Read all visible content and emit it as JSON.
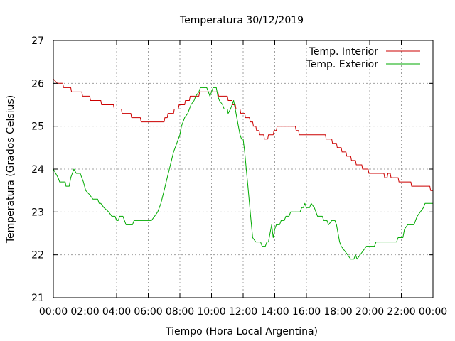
{
  "chart_data": {
    "type": "line",
    "title": "Temperatura 30/12/2019",
    "xlabel": "Tiempo (Hora Local Argentina)",
    "ylabel": "Temperatura (Grados Celsius)",
    "x_unit": "hours",
    "xlim": [
      0,
      24
    ],
    "ylim": [
      21,
      27
    ],
    "x_ticks": [
      0,
      2,
      4,
      6,
      8,
      10,
      12,
      14,
      16,
      18,
      20,
      22,
      24
    ],
    "x_tick_labels": [
      "00:00",
      "02:00",
      "04:00",
      "06:00",
      "08:00",
      "10:00",
      "12:00",
      "14:00",
      "16:00",
      "18:00",
      "20:00",
      "22:00",
      "00:00"
    ],
    "y_ticks": [
      21,
      22,
      23,
      24,
      25,
      26,
      27
    ],
    "y_tick_labels": [
      "21",
      "22",
      "23",
      "24",
      "25",
      "26",
      "27"
    ],
    "grid": true,
    "legend_position": "top-right",
    "series": [
      {
        "name": "Temp. Interior",
        "color": "#cc0000",
        "points": [
          [
            0,
            26.1
          ],
          [
            0.25,
            26.0
          ],
          [
            0.6,
            26.0
          ],
          [
            0.65,
            25.9
          ],
          [
            1.1,
            25.9
          ],
          [
            1.15,
            25.8
          ],
          [
            1.8,
            25.8
          ],
          [
            1.85,
            25.7
          ],
          [
            2.3,
            25.7
          ],
          [
            2.35,
            25.6
          ],
          [
            3.0,
            25.6
          ],
          [
            3.05,
            25.5
          ],
          [
            3.8,
            25.5
          ],
          [
            3.85,
            25.4
          ],
          [
            4.3,
            25.4
          ],
          [
            4.35,
            25.3
          ],
          [
            4.9,
            25.3
          ],
          [
            4.95,
            25.2
          ],
          [
            5.5,
            25.2
          ],
          [
            5.55,
            25.1
          ],
          [
            7.0,
            25.1
          ],
          [
            7.05,
            25.2
          ],
          [
            7.2,
            25.2
          ],
          [
            7.25,
            25.3
          ],
          [
            7.6,
            25.3
          ],
          [
            7.65,
            25.4
          ],
          [
            7.9,
            25.4
          ],
          [
            7.95,
            25.5
          ],
          [
            8.3,
            25.5
          ],
          [
            8.35,
            25.6
          ],
          [
            8.6,
            25.6
          ],
          [
            8.65,
            25.7
          ],
          [
            9.2,
            25.7
          ],
          [
            9.25,
            25.8
          ],
          [
            10.4,
            25.8
          ],
          [
            10.45,
            25.7
          ],
          [
            11.0,
            25.7
          ],
          [
            11.05,
            25.6
          ],
          [
            11.3,
            25.6
          ],
          [
            11.35,
            25.5
          ],
          [
            11.5,
            25.5
          ],
          [
            11.55,
            25.4
          ],
          [
            11.8,
            25.4
          ],
          [
            11.85,
            25.3
          ],
          [
            12.1,
            25.3
          ],
          [
            12.15,
            25.2
          ],
          [
            12.4,
            25.2
          ],
          [
            12.45,
            25.1
          ],
          [
            12.6,
            25.1
          ],
          [
            12.65,
            25.0
          ],
          [
            12.8,
            25.0
          ],
          [
            12.85,
            24.9
          ],
          [
            13.0,
            24.9
          ],
          [
            13.05,
            24.8
          ],
          [
            13.3,
            24.8
          ],
          [
            13.35,
            24.7
          ],
          [
            13.55,
            24.7
          ],
          [
            13.6,
            24.8
          ],
          [
            13.9,
            24.8
          ],
          [
            13.95,
            24.9
          ],
          [
            14.1,
            24.9
          ],
          [
            14.15,
            25.0
          ],
          [
            15.3,
            25.0
          ],
          [
            15.35,
            24.9
          ],
          [
            15.5,
            24.9
          ],
          [
            15.55,
            24.8
          ],
          [
            17.2,
            24.8
          ],
          [
            17.25,
            24.7
          ],
          [
            17.6,
            24.7
          ],
          [
            17.65,
            24.6
          ],
          [
            17.9,
            24.6
          ],
          [
            17.95,
            24.5
          ],
          [
            18.2,
            24.5
          ],
          [
            18.25,
            24.4
          ],
          [
            18.5,
            24.4
          ],
          [
            18.55,
            24.3
          ],
          [
            18.8,
            24.3
          ],
          [
            18.85,
            24.2
          ],
          [
            19.1,
            24.2
          ],
          [
            19.15,
            24.1
          ],
          [
            19.5,
            24.1
          ],
          [
            19.55,
            24.0
          ],
          [
            19.9,
            24.0
          ],
          [
            19.95,
            23.9
          ],
          [
            20.9,
            23.9
          ],
          [
            20.95,
            23.8
          ],
          [
            21.1,
            23.8
          ],
          [
            21.15,
            23.9
          ],
          [
            21.3,
            23.9
          ],
          [
            21.35,
            23.8
          ],
          [
            21.8,
            23.8
          ],
          [
            21.85,
            23.7
          ],
          [
            22.6,
            23.7
          ],
          [
            22.65,
            23.6
          ],
          [
            23.8,
            23.6
          ],
          [
            23.85,
            23.5
          ],
          [
            24.0,
            23.5
          ]
        ]
      },
      {
        "name": "Temp. Exterior",
        "color": "#00aa00",
        "points": [
          [
            0,
            24.0
          ],
          [
            0.3,
            23.8
          ],
          [
            0.4,
            23.7
          ],
          [
            0.75,
            23.7
          ],
          [
            0.8,
            23.6
          ],
          [
            1.0,
            23.6
          ],
          [
            1.1,
            23.8
          ],
          [
            1.3,
            24.0
          ],
          [
            1.45,
            23.9
          ],
          [
            1.7,
            23.9
          ],
          [
            1.9,
            23.7
          ],
          [
            2.05,
            23.5
          ],
          [
            2.3,
            23.4
          ],
          [
            2.5,
            23.3
          ],
          [
            2.8,
            23.3
          ],
          [
            2.9,
            23.2
          ],
          [
            3.0,
            23.2
          ],
          [
            3.2,
            23.1
          ],
          [
            3.5,
            23.0
          ],
          [
            3.7,
            22.9
          ],
          [
            3.9,
            22.9
          ],
          [
            4.0,
            22.8
          ],
          [
            4.1,
            22.8
          ],
          [
            4.2,
            22.9
          ],
          [
            4.4,
            22.9
          ],
          [
            4.5,
            22.8
          ],
          [
            4.6,
            22.7
          ],
          [
            5.0,
            22.7
          ],
          [
            5.1,
            22.8
          ],
          [
            6.2,
            22.8
          ],
          [
            6.4,
            22.9
          ],
          [
            6.6,
            23.0
          ],
          [
            6.8,
            23.2
          ],
          [
            7.0,
            23.5
          ],
          [
            7.2,
            23.8
          ],
          [
            7.4,
            24.1
          ],
          [
            7.6,
            24.4
          ],
          [
            7.8,
            24.6
          ],
          [
            8.0,
            24.8
          ],
          [
            8.1,
            25.0
          ],
          [
            8.3,
            25.2
          ],
          [
            8.5,
            25.3
          ],
          [
            8.7,
            25.5
          ],
          [
            8.9,
            25.6
          ],
          [
            9.0,
            25.7
          ],
          [
            9.2,
            25.8
          ],
          [
            9.3,
            25.9
          ],
          [
            9.7,
            25.9
          ],
          [
            9.8,
            25.8
          ],
          [
            9.9,
            25.7
          ],
          [
            10.0,
            25.8
          ],
          [
            10.1,
            25.9
          ],
          [
            10.3,
            25.9
          ],
          [
            10.4,
            25.7
          ],
          [
            10.5,
            25.6
          ],
          [
            10.7,
            25.5
          ],
          [
            10.8,
            25.4
          ],
          [
            11.0,
            25.4
          ],
          [
            11.05,
            25.3
          ],
          [
            11.2,
            25.4
          ],
          [
            11.3,
            25.5
          ],
          [
            11.4,
            25.6
          ],
          [
            11.5,
            25.4
          ],
          [
            11.6,
            25.2
          ],
          [
            11.7,
            25.0
          ],
          [
            11.8,
            24.8
          ],
          [
            11.9,
            24.7
          ],
          [
            12.0,
            24.7
          ],
          [
            12.1,
            24.4
          ],
          [
            12.2,
            24.0
          ],
          [
            12.3,
            23.6
          ],
          [
            12.4,
            23.2
          ],
          [
            12.5,
            22.8
          ],
          [
            12.6,
            22.4
          ],
          [
            12.8,
            22.3
          ],
          [
            13.1,
            22.3
          ],
          [
            13.2,
            22.2
          ],
          [
            13.4,
            22.2
          ],
          [
            13.5,
            22.3
          ],
          [
            13.6,
            22.3
          ],
          [
            13.7,
            22.5
          ],
          [
            13.8,
            22.7
          ],
          [
            13.9,
            22.4
          ],
          [
            14.0,
            22.6
          ],
          [
            14.1,
            22.7
          ],
          [
            14.3,
            22.7
          ],
          [
            14.4,
            22.8
          ],
          [
            14.6,
            22.8
          ],
          [
            14.7,
            22.9
          ],
          [
            14.9,
            22.9
          ],
          [
            15.0,
            23.0
          ],
          [
            15.6,
            23.0
          ],
          [
            15.7,
            23.1
          ],
          [
            15.8,
            23.1
          ],
          [
            15.9,
            23.2
          ],
          [
            16.0,
            23.1
          ],
          [
            16.2,
            23.1
          ],
          [
            16.3,
            23.2
          ],
          [
            16.5,
            23.1
          ],
          [
            16.6,
            23.0
          ],
          [
            16.7,
            22.9
          ],
          [
            17.0,
            22.9
          ],
          [
            17.1,
            22.8
          ],
          [
            17.3,
            22.8
          ],
          [
            17.4,
            22.7
          ],
          [
            17.6,
            22.8
          ],
          [
            17.8,
            22.8
          ],
          [
            17.9,
            22.7
          ],
          [
            18.0,
            22.5
          ],
          [
            18.1,
            22.3
          ],
          [
            18.2,
            22.2
          ],
          [
            18.4,
            22.1
          ],
          [
            18.6,
            22.0
          ],
          [
            18.8,
            21.9
          ],
          [
            19.0,
            21.9
          ],
          [
            19.1,
            22.0
          ],
          [
            19.2,
            21.9
          ],
          [
            19.4,
            22.0
          ],
          [
            19.6,
            22.1
          ],
          [
            19.8,
            22.2
          ],
          [
            20.3,
            22.2
          ],
          [
            20.4,
            22.3
          ],
          [
            21.7,
            22.3
          ],
          [
            21.8,
            22.4
          ],
          [
            22.1,
            22.4
          ],
          [
            22.2,
            22.6
          ],
          [
            22.4,
            22.7
          ],
          [
            22.8,
            22.7
          ],
          [
            22.9,
            22.8
          ],
          [
            23.0,
            22.9
          ],
          [
            23.2,
            23.0
          ],
          [
            23.4,
            23.1
          ],
          [
            23.5,
            23.2
          ],
          [
            24.0,
            23.2
          ]
        ]
      }
    ]
  }
}
